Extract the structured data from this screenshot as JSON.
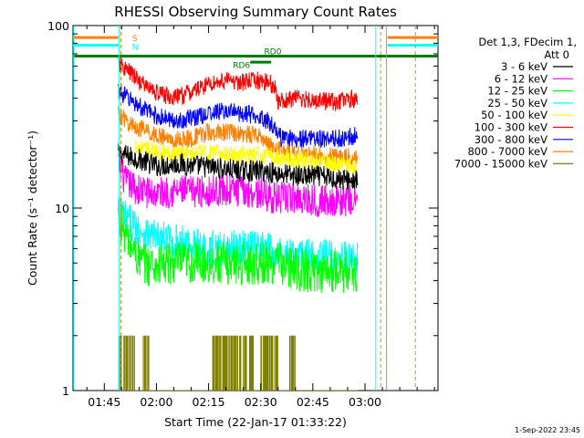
{
  "chart_data": {
    "type": "line",
    "title": "RHESSI Observing Summary Count Rates",
    "xlabel": "Start Time (22-Jan-17 01:33:22)",
    "ylabel": "Count Rate (s⁻¹ detector⁻¹)",
    "y_scale": "log",
    "ylim": [
      1,
      100
    ],
    "xlim_minutes": [
      96,
      201
    ],
    "x_ticks": [
      {
        "value": 105,
        "label": "01:45"
      },
      {
        "value": 120,
        "label": "02:00"
      },
      {
        "value": 135,
        "label": "02:15"
      },
      {
        "value": 150,
        "label": "02:30"
      },
      {
        "value": 165,
        "label": "02:45"
      },
      {
        "value": 180,
        "label": "03:00"
      }
    ],
    "y_ticks": [
      {
        "value": 1,
        "label": "1"
      },
      {
        "value": 10,
        "label": "10"
      },
      {
        "value": 100,
        "label": "100"
      }
    ],
    "legend_header": [
      "Det 1,3, FDecim 1,",
      "Att 0"
    ],
    "series": [
      {
        "name": "3 - 6 keV",
        "color": "#000000",
        "points": [
          [
            109,
            20
          ],
          [
            115,
            18.5
          ],
          [
            120,
            17
          ],
          [
            126,
            17.5
          ],
          [
            132,
            17
          ],
          [
            138,
            16.5
          ],
          [
            144,
            16
          ],
          [
            150,
            16
          ],
          [
            155,
            15.5
          ],
          [
            160,
            15
          ],
          [
            166,
            15
          ],
          [
            172,
            14.5
          ],
          [
            178,
            14
          ]
        ]
      },
      {
        "name": "6 - 12 keV",
        "color": "#ff00ff",
        "points": [
          [
            109,
            18
          ],
          [
            111,
            14
          ],
          [
            115,
            12.5
          ],
          [
            120,
            12
          ],
          [
            126,
            12.5
          ],
          [
            132,
            12.3
          ],
          [
            138,
            12.5
          ],
          [
            144,
            12.5
          ],
          [
            150,
            12
          ],
          [
            155,
            11.2
          ],
          [
            160,
            11.5
          ],
          [
            166,
            11
          ],
          [
            172,
            11
          ],
          [
            178,
            11
          ]
        ]
      },
      {
        "name": "12 - 25 keV",
        "color": "#00ff00",
        "points": [
          [
            109,
            9
          ],
          [
            112,
            6.5
          ],
          [
            116,
            5
          ],
          [
            120,
            4.8
          ],
          [
            126,
            5
          ],
          [
            132,
            5
          ],
          [
            138,
            5
          ],
          [
            144,
            5
          ],
          [
            150,
            5
          ],
          [
            155,
            5
          ],
          [
            160,
            4.6
          ],
          [
            166,
            4.5
          ],
          [
            172,
            4.5
          ],
          [
            178,
            4.5
          ]
        ]
      },
      {
        "name": "25 - 50 keV",
        "color": "#00ffff",
        "points": [
          [
            109,
            10
          ],
          [
            112,
            8.5
          ],
          [
            116,
            7.5
          ],
          [
            120,
            6.8
          ],
          [
            126,
            6.5
          ],
          [
            132,
            6.2
          ],
          [
            138,
            6
          ],
          [
            144,
            6
          ],
          [
            150,
            6
          ],
          [
            155,
            5.8
          ],
          [
            160,
            5.5
          ],
          [
            166,
            5.5
          ],
          [
            172,
            5.3
          ],
          [
            178,
            5.2
          ]
        ]
      },
      {
        "name": "50 - 100 keV",
        "color": "#ffff00",
        "points": [
          [
            114,
            22
          ],
          [
            120,
            20
          ],
          [
            126,
            20
          ],
          [
            132,
            20
          ],
          [
            138,
            20
          ],
          [
            144,
            19.5
          ],
          [
            150,
            19.5
          ],
          [
            155,
            19
          ],
          [
            160,
            18.5
          ],
          [
            166,
            18
          ],
          [
            172,
            17.5
          ],
          [
            178,
            17
          ]
        ]
      },
      {
        "name": "100 - 300 keV",
        "color": "#ff0000",
        "points": [
          [
            109,
            62
          ],
          [
            112,
            56
          ],
          [
            116,
            48
          ],
          [
            120,
            43
          ],
          [
            125,
            40
          ],
          [
            130,
            43
          ],
          [
            135,
            48
          ],
          [
            140,
            50
          ],
          [
            145,
            49
          ],
          [
            150,
            50
          ],
          [
            154,
            47
          ],
          [
            155,
            38
          ],
          [
            160,
            40
          ],
          [
            166,
            39
          ],
          [
            172,
            38
          ],
          [
            178,
            40
          ]
        ]
      },
      {
        "name": "300 - 800 keV",
        "color": "#0000ff",
        "points": [
          [
            109,
            44
          ],
          [
            112,
            40
          ],
          [
            116,
            35
          ],
          [
            120,
            32
          ],
          [
            125,
            30
          ],
          [
            130,
            31
          ],
          [
            135,
            33
          ],
          [
            140,
            34
          ],
          [
            145,
            33
          ],
          [
            150,
            32
          ],
          [
            154,
            28
          ],
          [
            156,
            24
          ],
          [
            160,
            24
          ],
          [
            166,
            24
          ],
          [
            172,
            24
          ],
          [
            178,
            25
          ]
        ]
      },
      {
        "name": "800 - 7000 keV",
        "color": "#ff8000",
        "points": [
          [
            109,
            33
          ],
          [
            112,
            29
          ],
          [
            116,
            27
          ],
          [
            120,
            25
          ],
          [
            125,
            23.5
          ],
          [
            130,
            24
          ],
          [
            135,
            26
          ],
          [
            140,
            26
          ],
          [
            145,
            25.5
          ],
          [
            150,
            25
          ],
          [
            154,
            21
          ],
          [
            158,
            20
          ],
          [
            166,
            19.5
          ],
          [
            172,
            19
          ],
          [
            178,
            19
          ]
        ]
      },
      {
        "name": "7000 - 15000 keV",
        "color": "#808000",
        "points": [
          [
            109,
            2
          ],
          [
            112,
            2
          ],
          [
            114,
            1
          ],
          [
            116,
            2
          ],
          [
            118,
            1
          ],
          [
            120,
            1
          ],
          [
            124,
            1
          ],
          [
            130,
            1
          ],
          [
            134,
            1
          ],
          [
            136,
            2
          ],
          [
            138,
            2
          ],
          [
            142,
            2
          ],
          [
            146,
            2
          ],
          [
            148,
            1
          ],
          [
            150,
            2
          ],
          [
            152,
            2
          ],
          [
            155,
            1
          ],
          [
            158,
            2
          ],
          [
            160,
            1
          ],
          [
            166,
            1
          ],
          [
            172,
            1
          ],
          [
            178,
            1
          ]
        ]
      }
    ],
    "annotations": {
      "flags": [
        {
          "label": "S",
          "color": "#ff8000"
        },
        {
          "label": "N",
          "color": "#00ffff"
        }
      ],
      "rd_labels": [
        "RD6",
        "RD0"
      ]
    },
    "timestamp": "1-Sep-2022 23:45"
  }
}
